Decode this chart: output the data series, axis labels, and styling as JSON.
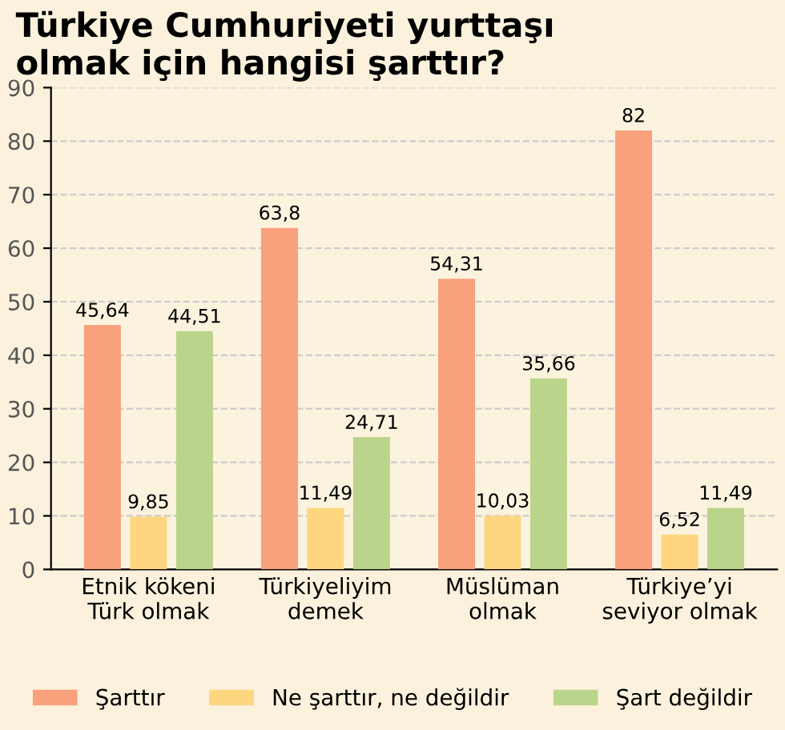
{
  "chart_data": {
    "type": "bar",
    "title": "Türkiye Cumhuriyeti yurttaşı\nolmak için hangisi şarttır?",
    "categories": [
      "Etnik kökeni\nTürk olmak",
      "Türkiyeliyim\ndemek",
      "Müslüman\nolmak",
      "Türkiye’yi\nseviyor olmak"
    ],
    "series": [
      {
        "name": "Şarttır",
        "color": "#f9a07c",
        "values": [
          45.64,
          63.8,
          54.31,
          82
        ],
        "value_labels": [
          "45,64",
          "63,8",
          "54,31",
          "82"
        ]
      },
      {
        "name": "Ne şarttır, ne değildir",
        "color": "#fdd67f",
        "values": [
          9.85,
          11.49,
          10.03,
          6.52
        ],
        "value_labels": [
          "9,85",
          "11,49",
          "10,03",
          "6,52"
        ]
      },
      {
        "name": "Şart değildir",
        "color": "#bad48b",
        "values": [
          44.51,
          24.71,
          35.66,
          11.49
        ],
        "value_labels": [
          "44,51",
          "24,71",
          "35,66",
          "11,49"
        ]
      }
    ],
    "ylim": [
      0,
      90
    ],
    "yticks": [
      0,
      10,
      20,
      30,
      40,
      50,
      60,
      70,
      80,
      90
    ],
    "grid": "y",
    "legend": "bottom"
  }
}
